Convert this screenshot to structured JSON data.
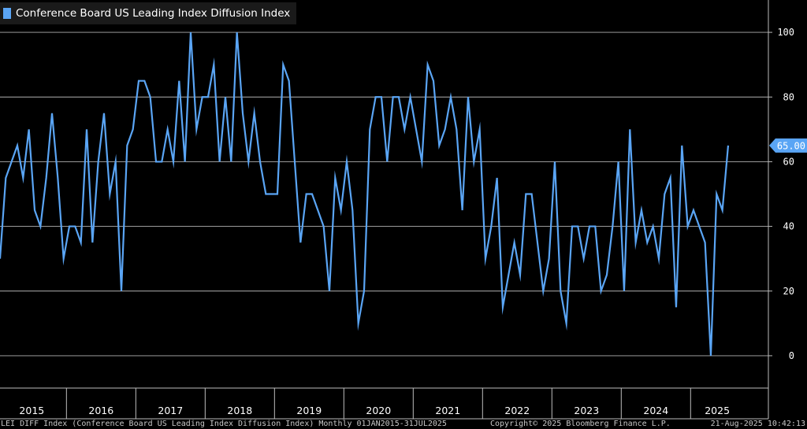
{
  "chart_data": {
    "type": "line",
    "title": "Conference Board US Leading Index Diffusion Index",
    "legend": [
      {
        "name": "Conference Board US Leading Index Diffusion Index",
        "color": "#5aa5f5"
      }
    ],
    "frequency": "Monthly",
    "x_start": "2015-01",
    "ylim": [
      -10,
      110
    ],
    "yticks": [
      0,
      20,
      40,
      60,
      80,
      100
    ],
    "xlabels": [
      "2015",
      "2016",
      "2017",
      "2018",
      "2019",
      "2020",
      "2021",
      "2022",
      "2023",
      "2024",
      "2025"
    ],
    "grid": true,
    "last_value_label": "65.00",
    "series": [
      {
        "name": "Conference Board US Leading Index Diffusion Index",
        "color": "#5aa5f5",
        "values": [
          30,
          55,
          60,
          65,
          55,
          70,
          45,
          40,
          55,
          75,
          55,
          30,
          40,
          40,
          35,
          70,
          35,
          60,
          75,
          50,
          60,
          20,
          65,
          70,
          85,
          85,
          80,
          60,
          60,
          70,
          60,
          85,
          60,
          100,
          70,
          80,
          80,
          90,
          60,
          80,
          60,
          100,
          75,
          60,
          75,
          60,
          50,
          50,
          50,
          90,
          85,
          60,
          35,
          50,
          50,
          45,
          40,
          20,
          55,
          45,
          60,
          45,
          10,
          20,
          70,
          80,
          80,
          60,
          80,
          80,
          70,
          80,
          70,
          60,
          90,
          85,
          65,
          70,
          80,
          70,
          45,
          80,
          60,
          70,
          30,
          40,
          55,
          15,
          25,
          35,
          25,
          50,
          50,
          35,
          20,
          30,
          60,
          20,
          10,
          40,
          40,
          30,
          40,
          40,
          20,
          25,
          40,
          60,
          20,
          70,
          35,
          45,
          35,
          40,
          30,
          50,
          55,
          15,
          65,
          40,
          45,
          40,
          35,
          0,
          50,
          45,
          65
        ]
      }
    ]
  },
  "footer": {
    "left": "LEI DIFF Index (Conference Board US Leading Index Diffusion Index)  Monthly 01JAN2015-31JUL2025",
    "middle": "Copyright© 2025 Bloomberg Finance L.P.",
    "right": "21-Aug-2025 10:42:13"
  },
  "colors": {
    "background": "#000000",
    "line": "#5aa5f5",
    "grid": "#d0d0d0",
    "text": "#ffffff"
  }
}
